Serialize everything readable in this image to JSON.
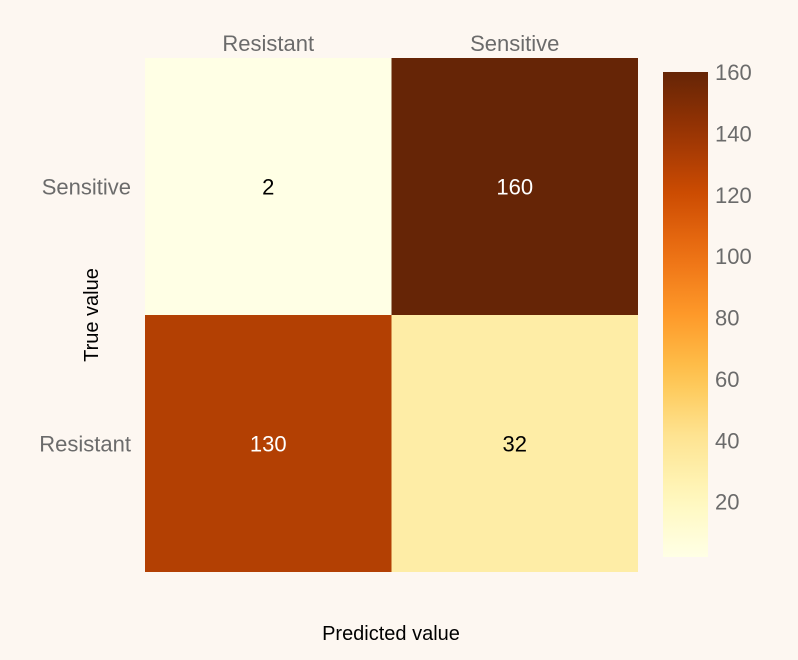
{
  "chart_data": {
    "type": "heatmap",
    "title": "",
    "xlabel": "Predicted value",
    "ylabel": "True value",
    "x_categories": [
      "Resistant",
      "Sensitive"
    ],
    "y_categories": [
      "Sensitive",
      "Resistant"
    ],
    "values": [
      [
        2,
        160
      ],
      [
        130,
        32
      ]
    ],
    "colorscale": "YlOrBr",
    "colorbar": {
      "range": [
        2,
        160
      ],
      "ticks": [
        20,
        40,
        60,
        80,
        100,
        120,
        140,
        160
      ]
    },
    "x_axis_position": "top"
  }
}
